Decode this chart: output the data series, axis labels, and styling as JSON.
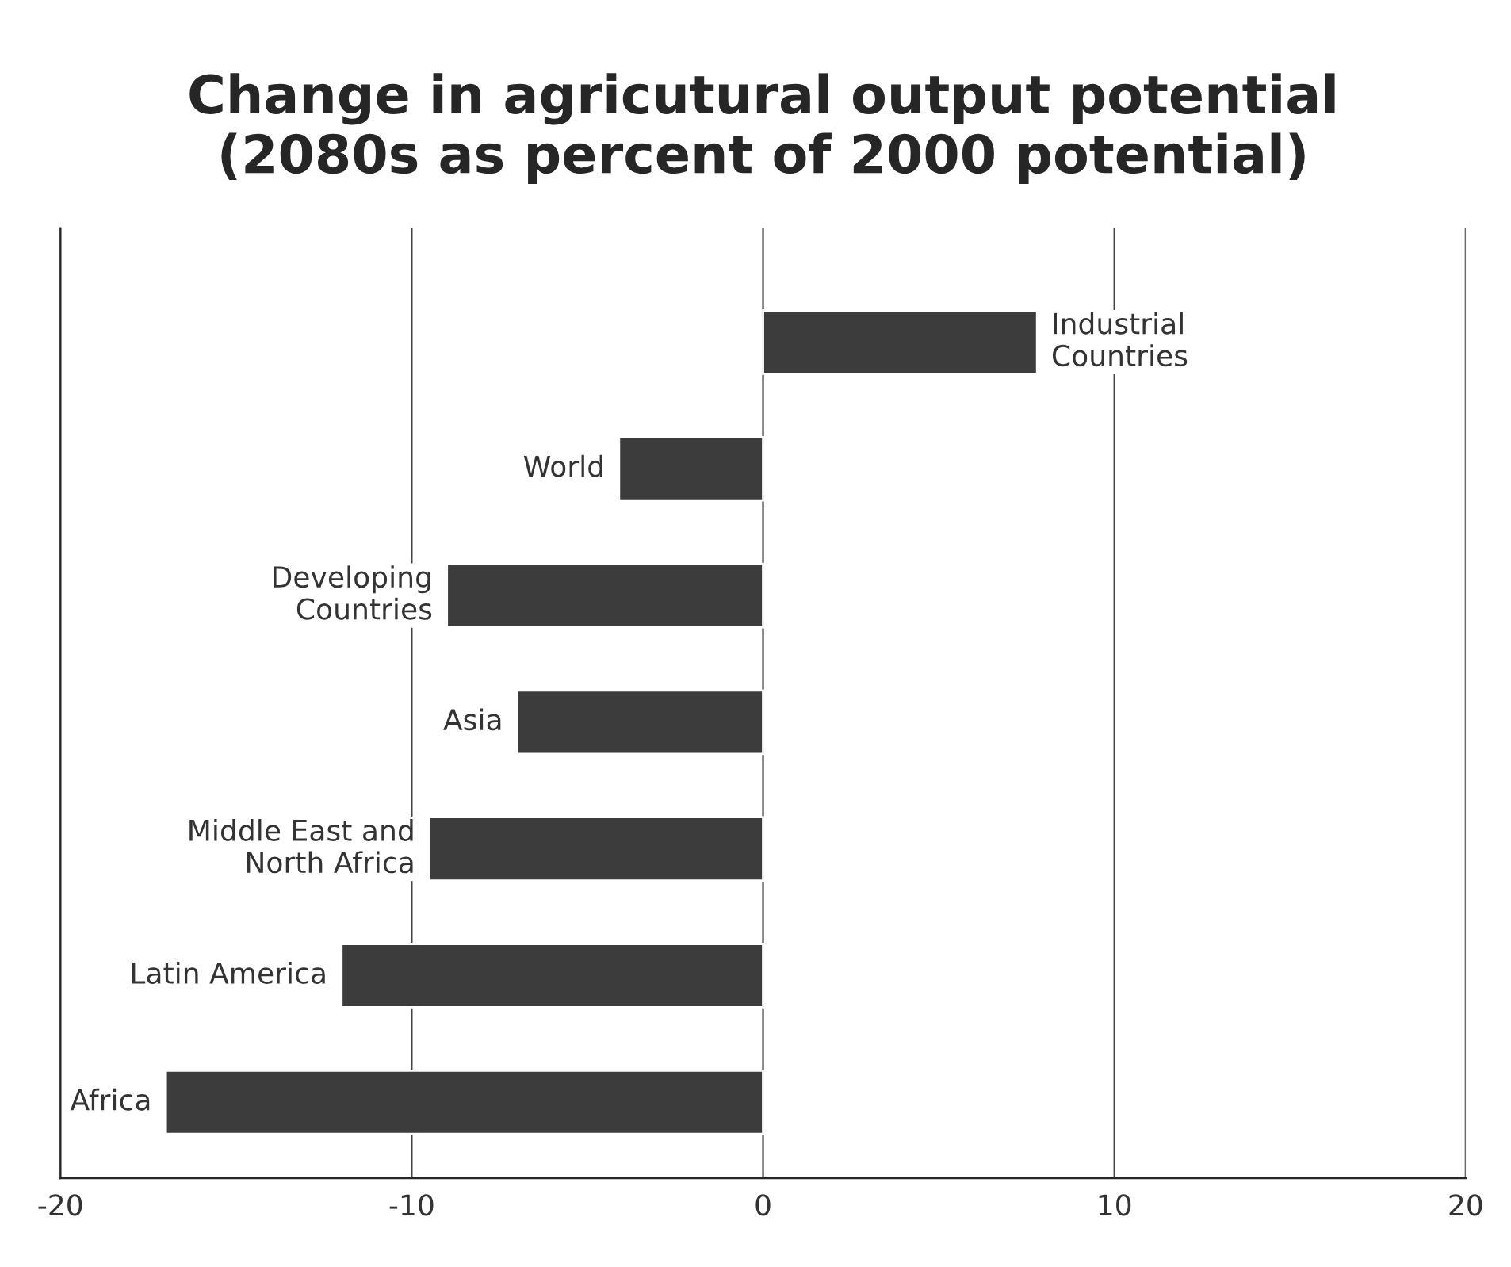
{
  "chart_data": {
    "type": "bar",
    "orientation": "horizontal",
    "title": "Change in agricutural output potential\n(2080s as percent of 2000 potential)",
    "categories": [
      "Industrial\nCountries",
      "World",
      "Developing\nCountries",
      "Asia",
      "Middle East and\nNorth Africa",
      "Latin America",
      "Africa"
    ],
    "values": [
      7.8,
      -4.1,
      -9.0,
      -7.0,
      -9.5,
      -12.0,
      -17.0
    ],
    "color": "#3c3c3c",
    "xlim": [
      -20,
      20
    ],
    "xticks": [
      -20,
      -10,
      0,
      10,
      20
    ],
    "grid": "x",
    "tick_labels": "x"
  }
}
